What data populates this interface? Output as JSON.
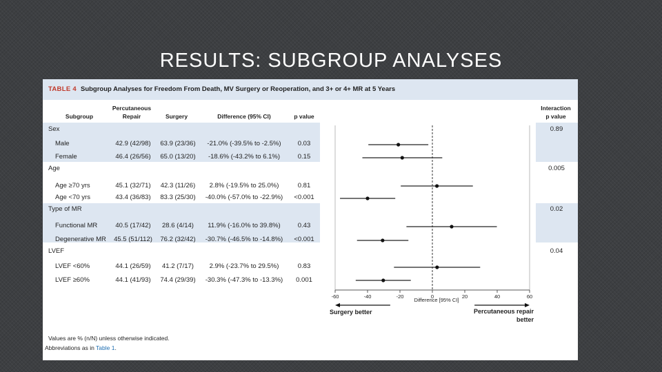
{
  "slide_title": "RESULTS: SUBGROUP ANALYSES",
  "table": {
    "label": "TABLE 4",
    "title": "Subgroup Analyses for Freedom From Death, MV Surgery or Reoperation, and 3+ or 4+ MR at 5 Years",
    "columns": {
      "subgroup": "Subgroup",
      "percutaneous": "Percutaneous\nRepair",
      "surgery": "Surgery",
      "difference": "Difference (95% CI)",
      "pvalue": "p value",
      "interaction": "Interaction\np value"
    },
    "groups": [
      {
        "name": "Sex",
        "interaction_p": "0.89",
        "rows": [
          {
            "label": "Male",
            "percutaneous": "42.9 (42/98)",
            "surgery": "63.9 (23/36)",
            "difference": "-21.0% (-39.5% to -2.5%)",
            "p": "0.03"
          },
          {
            "label": "Female",
            "percutaneous": "46.4 (26/56)",
            "surgery": "65.0 (13/20)",
            "difference": "-18.6% (-43.2% to 6.1%)",
            "p": "0.15"
          }
        ]
      },
      {
        "name": "Age",
        "interaction_p": "0.005",
        "rows": [
          {
            "label": "Age ≥70 yrs",
            "percutaneous": "45.1 (32/71)",
            "surgery": "42.3 (11/26)",
            "difference": "2.8% (-19.5% to 25.0%)",
            "p": "0.81"
          },
          {
            "label": "Age <70 yrs",
            "percutaneous": "43.4 (36/83)",
            "surgery": "83.3 (25/30)",
            "difference": "-40.0% (-57.0% to -22.9%)",
            "p": "<0.001"
          }
        ]
      },
      {
        "name": "Type of MR",
        "interaction_p": "0.02",
        "rows": [
          {
            "label": "Functional MR",
            "percutaneous": "40.5 (17/42)",
            "surgery": "28.6 (4/14)",
            "difference": "11.9% (-16.0% to 39.8%)",
            "p": "0.43"
          },
          {
            "label": "Degenerative MR",
            "percutaneous": "45.5 (51/112)",
            "surgery": "76.2 (32/42)",
            "difference": "-30.7% (-46.5% to -14.8%)",
            "p": "<0.001"
          }
        ]
      },
      {
        "name": "LVEF",
        "interaction_p": "0.04",
        "rows": [
          {
            "label": "LVEF <60%",
            "percutaneous": "44.1 (26/59)",
            "surgery": "41.2 (7/17)",
            "difference": "2.9% (-23.7% to 29.5%)",
            "p": "0.83"
          },
          {
            "label": "LVEF ≥60%",
            "percutaneous": "44.1 (41/93)",
            "surgery": "74.4 (29/39)",
            "difference": "-30.3% (-47.3% to -13.3%)",
            "p": "0.001"
          }
        ]
      }
    ],
    "footnote_1": "Values are % (n/N) unless otherwise indicated.",
    "footnote_2_prefix": "Abbreviations as in ",
    "footnote_2_link": "Table 1",
    "footnote_2_suffix": "."
  },
  "chart_data": {
    "type": "scatter",
    "subtype": "forest",
    "xlabel": "Difference [95% CI]",
    "xlim": [
      -60,
      60
    ],
    "xticks": [
      -60,
      -40,
      -20,
      0,
      20,
      40,
      60
    ],
    "reference_line": 0,
    "left_annotation": "Surgery better",
    "right_annotation": "Percutaneous repair better",
    "points": [
      {
        "label": "Male",
        "estimate": -21.0,
        "lower": -39.5,
        "upper": -2.5
      },
      {
        "label": "Female",
        "estimate": -18.6,
        "lower": -43.2,
        "upper": 6.1
      },
      {
        "label": "Age ≥70 yrs",
        "estimate": 2.8,
        "lower": -19.5,
        "upper": 25.0
      },
      {
        "label": "Age <70 yrs",
        "estimate": -40.0,
        "lower": -57.0,
        "upper": -22.9
      },
      {
        "label": "Functional MR",
        "estimate": 11.9,
        "lower": -16.0,
        "upper": 39.8
      },
      {
        "label": "Degenerative MR",
        "estimate": -30.7,
        "lower": -46.5,
        "upper": -14.8
      },
      {
        "label": "LVEF <60%",
        "estimate": 2.9,
        "lower": -23.7,
        "upper": 29.5
      },
      {
        "label": "LVEF ≥60%",
        "estimate": -30.3,
        "lower": -47.3,
        "upper": -13.3
      }
    ]
  }
}
